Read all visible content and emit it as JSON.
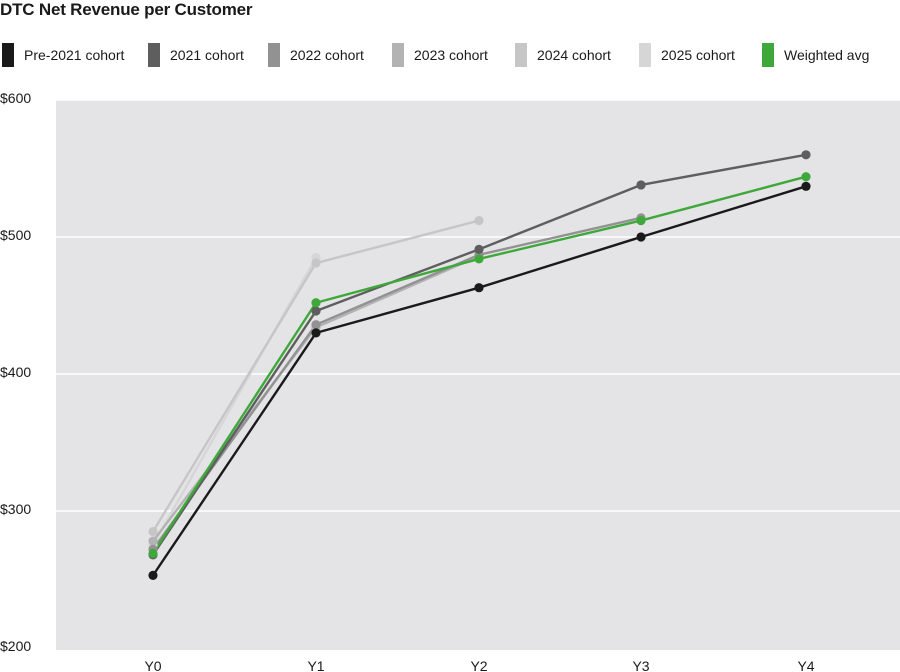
{
  "chart_data": {
    "type": "line",
    "title": "DTC Net Revenue per Customer",
    "categories": [
      "Y0",
      "Y1",
      "Y2",
      "Y3",
      "Y4"
    ],
    "y_ticks": [
      "$200",
      "$300",
      "$400",
      "$500",
      "$600"
    ],
    "ylim": [
      200,
      600
    ],
    "grid": true,
    "legend_position": "top",
    "series": [
      {
        "name": "Pre-2021 cohort",
        "color": "#1a1a1a",
        "values": [
          253,
          430,
          463,
          500,
          537
        ]
      },
      {
        "name": "2021 cohort",
        "color": "#5e5e5e",
        "values": [
          268,
          446,
          491,
          538,
          560
        ]
      },
      {
        "name": "2022 cohort",
        "color": "#929292",
        "values": [
          272,
          436,
          487,
          514,
          null
        ]
      },
      {
        "name": "2023 cohort",
        "color": "#b3b3b3",
        "values": [
          278,
          434,
          486,
          null,
          null
        ]
      },
      {
        "name": "2024 cohort",
        "color": "#c6c6c6",
        "values": [
          285,
          481,
          512,
          null,
          null
        ]
      },
      {
        "name": "2025 cohort",
        "color": "#d6d6d6",
        "values": [
          275,
          485,
          null,
          null,
          null
        ]
      },
      {
        "name": "Weighted avg",
        "color": "#3ea83a",
        "values": [
          269,
          452,
          484,
          512,
          544
        ]
      }
    ]
  }
}
